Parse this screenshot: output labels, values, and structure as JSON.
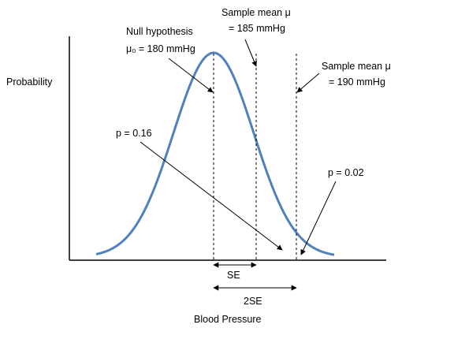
{
  "y_axis_label": "Probability",
  "x_axis_label": "Blood Pressure",
  "null_hypothesis": {
    "line1": "Null hypothesis",
    "line2": "μ₀ = 180 mmHg"
  },
  "sample_mean_185": {
    "line1": "Sample mean μ",
    "line2": "= 185 mmHg"
  },
  "sample_mean_190": {
    "line1": "Sample mean μ",
    "line2": "= 190 mmHg"
  },
  "p_016": "p = 0.16",
  "p_002": "p = 0.02",
  "se_label": "SE",
  "two_se_label": "2SE",
  "curve_color": "#4f81bd",
  "distribution": {
    "type": "normal",
    "mean": 180,
    "se": 5
  }
}
